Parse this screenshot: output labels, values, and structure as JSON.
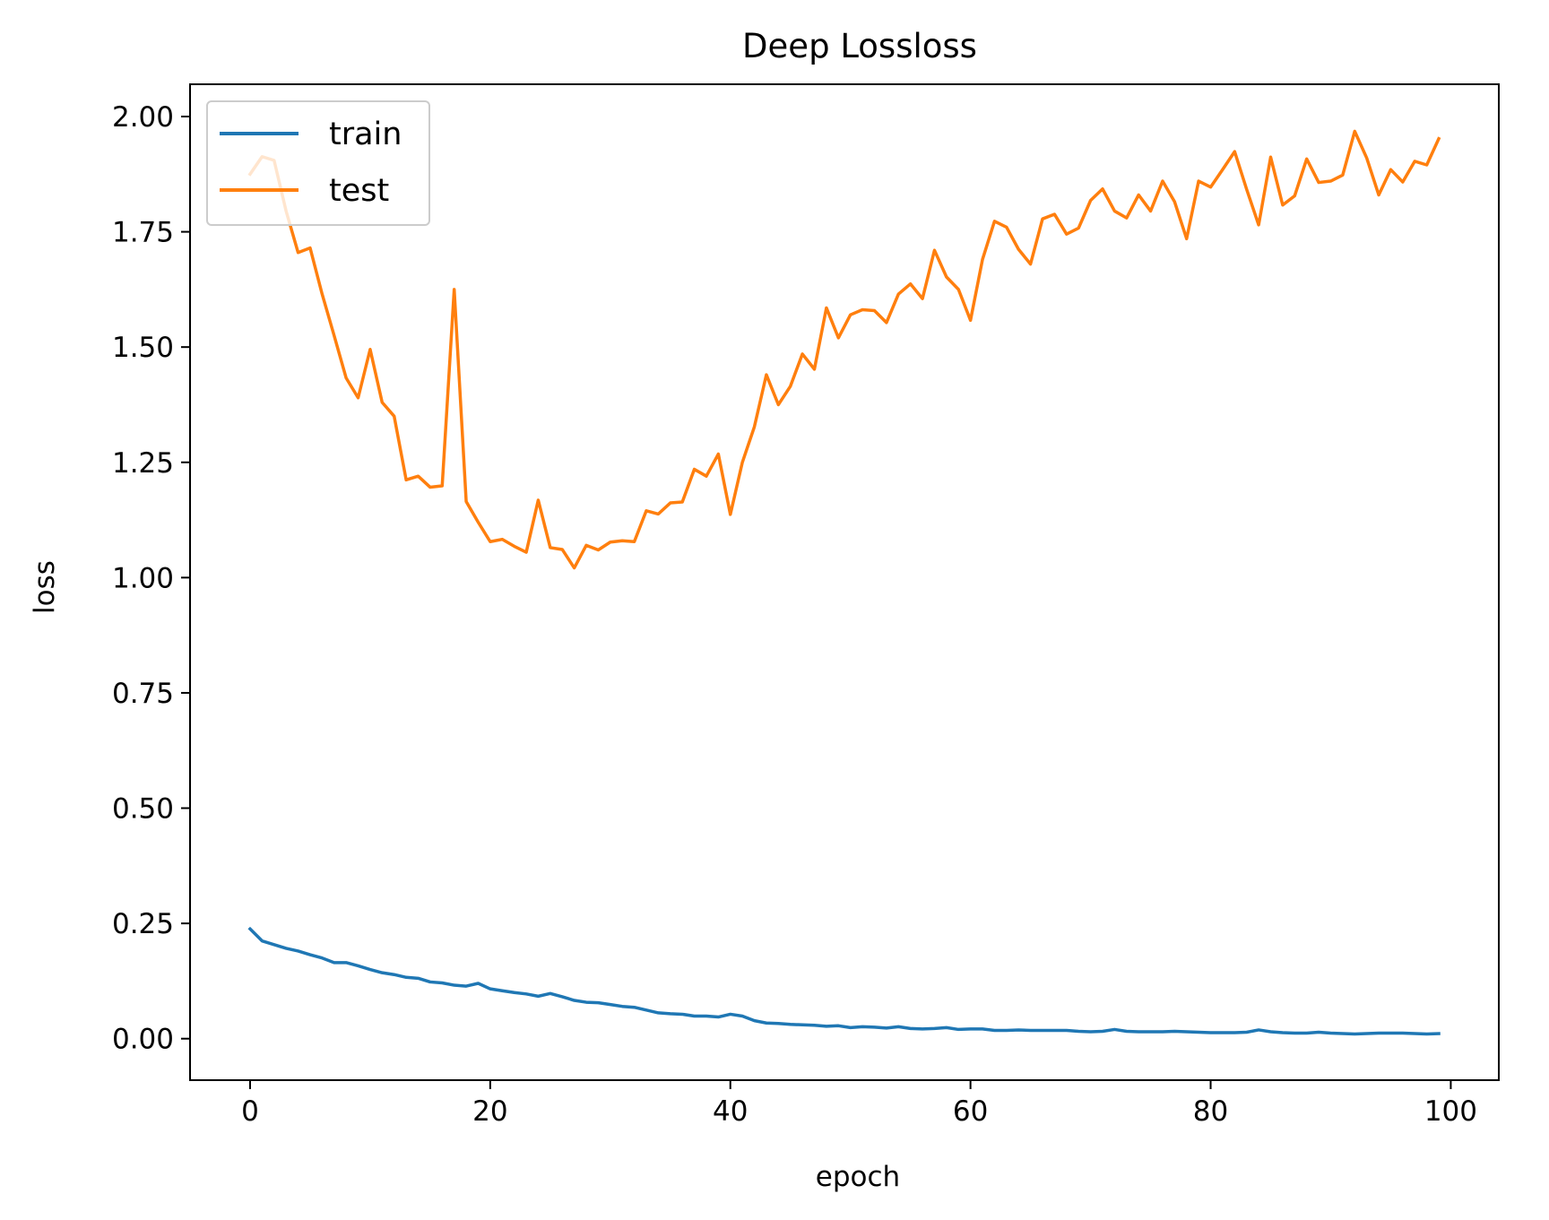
{
  "chart_data": {
    "type": "line",
    "title": "Deep Lossloss",
    "xlabel": "epoch",
    "ylabel": "loss",
    "xlim": [
      -5,
      104
    ],
    "ylim": [
      -0.09,
      2.07
    ],
    "xticks": [
      0,
      20,
      40,
      60,
      80,
      100
    ],
    "xtick_labels": [
      "0",
      "20",
      "40",
      "60",
      "80",
      "100"
    ],
    "yticks": [
      0.0,
      0.25,
      0.5,
      0.75,
      1.0,
      1.25,
      1.5,
      1.75,
      2.0
    ],
    "ytick_labels": [
      "0.00",
      "0.25",
      "0.50",
      "0.75",
      "1.00",
      "1.25",
      "1.50",
      "1.75",
      "2.00"
    ],
    "grid": false,
    "legend_position": "top-left",
    "series": [
      {
        "name": "train",
        "color": "#1f77b4",
        "x": [
          0,
          1,
          2,
          3,
          4,
          5,
          6,
          7,
          8,
          9,
          10,
          11,
          12,
          13,
          14,
          15,
          16,
          17,
          18,
          19,
          20,
          21,
          22,
          23,
          24,
          25,
          26,
          27,
          28,
          29,
          30,
          31,
          32,
          33,
          34,
          35,
          36,
          37,
          38,
          39,
          40,
          41,
          42,
          43,
          44,
          45,
          46,
          47,
          48,
          49,
          50,
          51,
          52,
          53,
          54,
          55,
          56,
          57,
          58,
          59,
          60,
          61,
          62,
          63,
          64,
          65,
          66,
          67,
          68,
          69,
          70,
          71,
          72,
          73,
          74,
          75,
          76,
          77,
          78,
          79,
          80,
          81,
          82,
          83,
          84,
          85,
          86,
          87,
          88,
          89,
          90,
          91,
          92,
          93,
          94,
          95,
          96,
          97,
          98,
          99
        ],
        "y": [
          0.238,
          0.212,
          0.204,
          0.196,
          0.19,
          0.182,
          0.175,
          0.165,
          0.165,
          0.158,
          0.15,
          0.143,
          0.139,
          0.133,
          0.131,
          0.123,
          0.121,
          0.116,
          0.114,
          0.12,
          0.108,
          0.104,
          0.1,
          0.097,
          0.092,
          0.098,
          0.091,
          0.083,
          0.079,
          0.078,
          0.074,
          0.07,
          0.068,
          0.062,
          0.056,
          0.054,
          0.053,
          0.049,
          0.049,
          0.047,
          0.053,
          0.049,
          0.039,
          0.034,
          0.033,
          0.031,
          0.03,
          0.029,
          0.027,
          0.028,
          0.024,
          0.026,
          0.025,
          0.023,
          0.026,
          0.022,
          0.021,
          0.022,
          0.024,
          0.02,
          0.021,
          0.021,
          0.018,
          0.018,
          0.019,
          0.018,
          0.018,
          0.018,
          0.018,
          0.016,
          0.015,
          0.016,
          0.02,
          0.016,
          0.015,
          0.015,
          0.015,
          0.016,
          0.015,
          0.014,
          0.013,
          0.013,
          0.013,
          0.014,
          0.019,
          0.015,
          0.013,
          0.012,
          0.012,
          0.014,
          0.012,
          0.011,
          0.01,
          0.011,
          0.012,
          0.012,
          0.012,
          0.011,
          0.01,
          0.011
        ]
      },
      {
        "name": "test",
        "color": "#ff7f0e",
        "x": [
          0,
          1,
          2,
          3,
          4,
          5,
          6,
          7,
          8,
          9,
          10,
          11,
          12,
          13,
          14,
          15,
          16,
          17,
          18,
          19,
          20,
          21,
          22,
          23,
          24,
          25,
          26,
          27,
          28,
          29,
          30,
          31,
          32,
          33,
          34,
          35,
          36,
          37,
          38,
          39,
          40,
          41,
          42,
          43,
          44,
          45,
          46,
          47,
          48,
          49,
          50,
          51,
          52,
          53,
          54,
          55,
          56,
          57,
          58,
          59,
          60,
          61,
          62,
          63,
          64,
          65,
          66,
          67,
          68,
          69,
          70,
          71,
          72,
          73,
          74,
          75,
          76,
          77,
          78,
          79,
          80,
          81,
          82,
          83,
          84,
          85,
          86,
          87,
          88,
          89,
          90,
          91,
          92,
          93,
          94,
          95,
          96,
          97,
          98,
          99
        ],
        "y": [
          1.875,
          1.913,
          1.905,
          1.795,
          1.705,
          1.715,
          1.615,
          1.525,
          1.433,
          1.39,
          1.495,
          1.38,
          1.35,
          1.212,
          1.22,
          1.196,
          1.199,
          1.625,
          1.165,
          1.12,
          1.078,
          1.083,
          1.068,
          1.055,
          1.168,
          1.065,
          1.061,
          1.021,
          1.07,
          1.06,
          1.077,
          1.08,
          1.078,
          1.145,
          1.138,
          1.162,
          1.164,
          1.235,
          1.22,
          1.268,
          1.137,
          1.25,
          1.327,
          1.44,
          1.375,
          1.415,
          1.485,
          1.452,
          1.585,
          1.52,
          1.57,
          1.581,
          1.579,
          1.553,
          1.615,
          1.637,
          1.605,
          1.71,
          1.652,
          1.625,
          1.558,
          1.69,
          1.773,
          1.76,
          1.712,
          1.68,
          1.778,
          1.788,
          1.745,
          1.758,
          1.818,
          1.843,
          1.795,
          1.78,
          1.83,
          1.795,
          1.86,
          1.815,
          1.735,
          1.86,
          1.847,
          1.885,
          1.924,
          1.842,
          1.765,
          1.912,
          1.808,
          1.828,
          1.908,
          1.857,
          1.86,
          1.873,
          1.968,
          1.91,
          1.83,
          1.885,
          1.858,
          1.903,
          1.895,
          1.952
        ]
      }
    ]
  }
}
